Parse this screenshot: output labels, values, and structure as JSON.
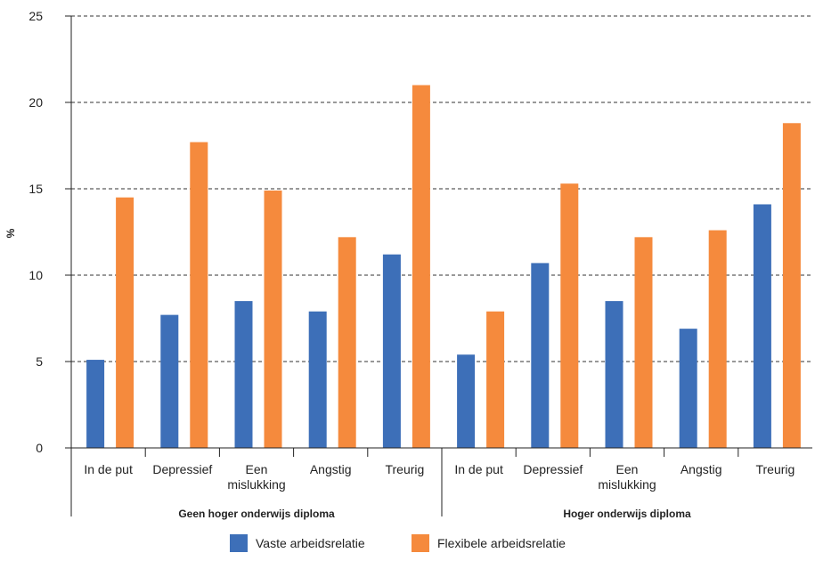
{
  "chart_data": {
    "type": "bar",
    "ylabel": "%",
    "ylim": [
      0,
      25
    ],
    "yticks": [
      0,
      5,
      10,
      15,
      20,
      25
    ],
    "grid": true,
    "legend_position": "bottom",
    "groups": [
      {
        "label": "Geen hoger onderwijs diploma",
        "categories": [
          "In de put",
          "Depressief",
          "Een mislukking",
          "Angstig",
          "Treurig"
        ]
      },
      {
        "label": "Hoger onderwijs diploma",
        "categories": [
          "In de put",
          "Depressief",
          "Een mislukking",
          "Angstig",
          "Treurig"
        ]
      }
    ],
    "categories": [
      "In de put",
      "Depressief",
      "Een mislukking",
      "Angstig",
      "Treurig",
      "In de put",
      "Depressief",
      "Een mislukking",
      "Angstig",
      "Treurig"
    ],
    "series": [
      {
        "name": "Vaste arbeidsrelatie",
        "color": "#3d6fb8",
        "values": [
          5.1,
          7.7,
          8.5,
          7.9,
          11.2,
          5.4,
          10.7,
          8.5,
          6.9,
          14.1
        ]
      },
      {
        "name": "Flexibele arbeidsrelatie",
        "color": "#f58a3d",
        "values": [
          14.5,
          17.7,
          14.9,
          12.2,
          21.0,
          7.9,
          15.3,
          12.2,
          12.6,
          18.8
        ]
      }
    ]
  }
}
